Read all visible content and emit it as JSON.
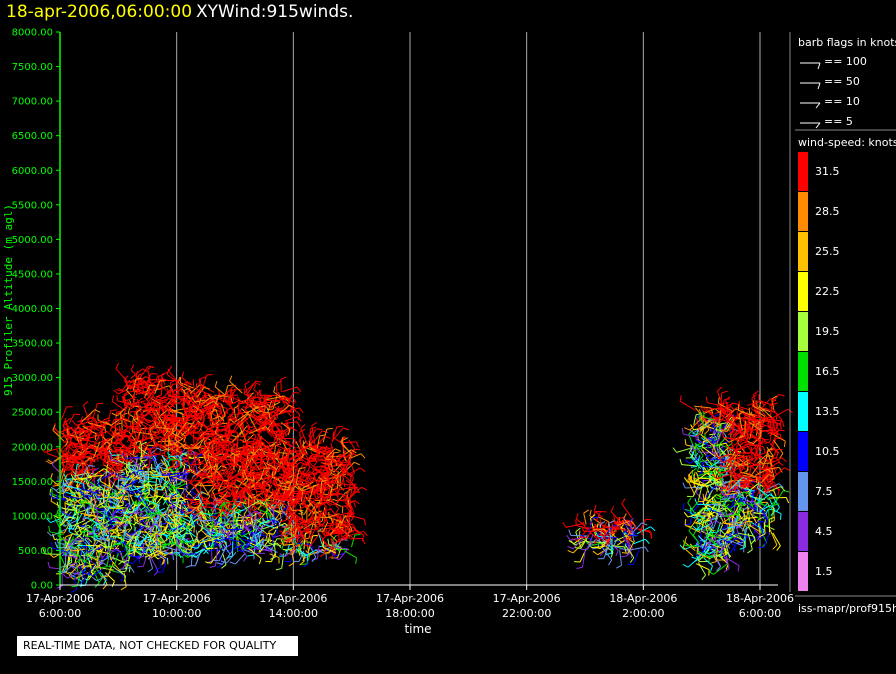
{
  "header": {
    "date_label": "18-apr-2006,06:00:00",
    "product_label": "XYWind:915winds."
  },
  "quality_note": "REAL-TIME DATA, NOT CHECKED FOR QUALITY",
  "barb_legend": {
    "title": "barb flags in knots",
    "entries": [
      "== 100",
      "== 50",
      "== 10",
      "== 5"
    ]
  },
  "speed_legend": {
    "title": "wind-speed: knots",
    "levels": [
      {
        "label": "31.5",
        "color": "#ff0000"
      },
      {
        "label": "28.5",
        "color": "#ff8c00"
      },
      {
        "label": "25.5",
        "color": "#ffc000"
      },
      {
        "label": "22.5",
        "color": "#ffff00"
      },
      {
        "label": "19.5",
        "color": "#a6ff3c"
      },
      {
        "label": "16.5",
        "color": "#00e000"
      },
      {
        "label": "13.5",
        "color": "#00ffff"
      },
      {
        "label": "10.5",
        "color": "#0000ff"
      },
      {
        "label": "7.5",
        "color": "#6495ed"
      },
      {
        "label": "4.5",
        "color": "#8a2be2"
      },
      {
        "label": "1.5",
        "color": "#ee82ee"
      }
    ]
  },
  "source_label": "iss-mapr/prof915h",
  "colors": {
    "axis": "#00ff00",
    "grid": "#aaaaaa",
    "title_date": "#ffff00"
  },
  "chart_data": {
    "type": "scatter",
    "ylabel": "915 Profiler Altitude (m agl)",
    "xlabel": "time",
    "ylim": [
      0,
      8000
    ],
    "yticks": [
      "0.00",
      "500.00",
      "1000.00",
      "1500.00",
      "2000.00",
      "2500.00",
      "3000.00",
      "3500.00",
      "4000.00",
      "4500.00",
      "5000.00",
      "5500.00",
      "6000.00",
      "6500.00",
      "7000.00",
      "7500.00",
      "8000.00"
    ],
    "xlim_hours": [
      0,
      24
    ],
    "xticks": [
      {
        "hour": 0,
        "date": "17-Apr-2006",
        "time": "6:00:00"
      },
      {
        "hour": 4,
        "date": "17-Apr-2006",
        "time": "10:00:00"
      },
      {
        "hour": 8,
        "date": "17-Apr-2006",
        "time": "14:00:00"
      },
      {
        "hour": 12,
        "date": "17-Apr-2006",
        "time": "18:00:00"
      },
      {
        "hour": 16,
        "date": "17-Apr-2006",
        "time": "22:00:00"
      },
      {
        "hour": 20,
        "date": "18-Apr-2006",
        "time": "2:00:00"
      },
      {
        "hour": 24,
        "date": "18-Apr-2006",
        "time": "6:00:00"
      }
    ],
    "grid": "vertical",
    "regions": [
      {
        "t0": 0.0,
        "t1": 2.2,
        "h0": 150,
        "h1": 2400,
        "color_split": 1600
      },
      {
        "t0": 2.2,
        "t1": 4.6,
        "h0": 400,
        "h1": 3000,
        "color_split": 1900
      },
      {
        "t0": 4.6,
        "t1": 7.8,
        "h0": 450,
        "h1": 2800,
        "color_split": 1100
      },
      {
        "t0": 7.8,
        "t1": 10.0,
        "h0": 450,
        "h1": 2100,
        "color_split": 600
      },
      {
        "t0": 17.8,
        "t1": 19.9,
        "h0": 500,
        "h1": 1000,
        "color_split": 750
      },
      {
        "t0": 21.7,
        "t1": 23.0,
        "h0": 300,
        "h1": 2600,
        "color_split": 2400
      },
      {
        "t0": 23.0,
        "t1": 24.5,
        "h0": 700,
        "h1": 2600,
        "color_split": 1400
      }
    ]
  }
}
